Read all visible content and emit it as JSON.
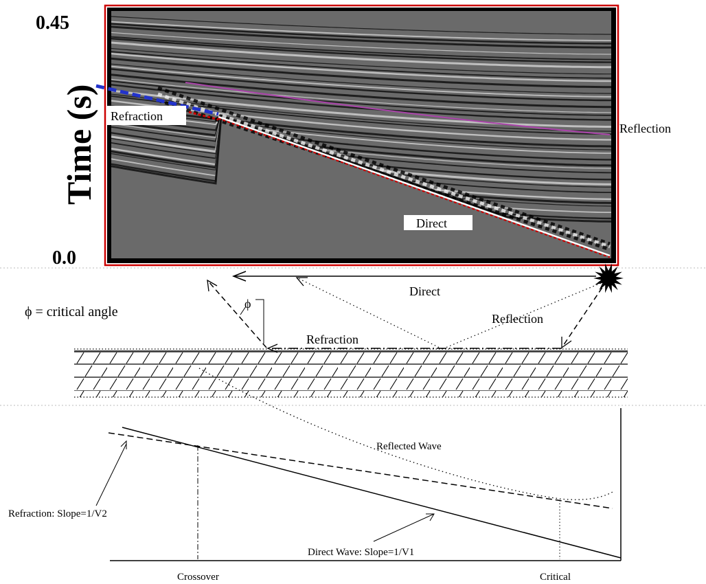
{
  "seismogram": {
    "y_tick_top": "0.45",
    "y_tick_bottom": "0.0",
    "y_axis_label": "Time (s)",
    "label_refraction": "Refraction",
    "label_reflection": "Reflection",
    "label_direct": "Direct"
  },
  "ray_diagram": {
    "critical_angle_note": "ϕ = critical angle",
    "phi_symbol": "ϕ",
    "label_direct": "Direct",
    "label_reflection": "Reflection",
    "label_refraction": "Refraction"
  },
  "traveltime_plot": {
    "label_reflected_wave": "Reflected Wave",
    "label_refraction_slope": "Refraction: Slope=1/V2",
    "label_direct_slope": "Direct Wave: Slope=1/V1",
    "label_crossover": "Crossover",
    "label_critical": "Critical"
  },
  "colors": {
    "frame_red": "#cc0000",
    "refraction_blue": "#2233cc",
    "reflection_purple": "#aa44aa",
    "panel_gray": "#6a6a6a"
  }
}
